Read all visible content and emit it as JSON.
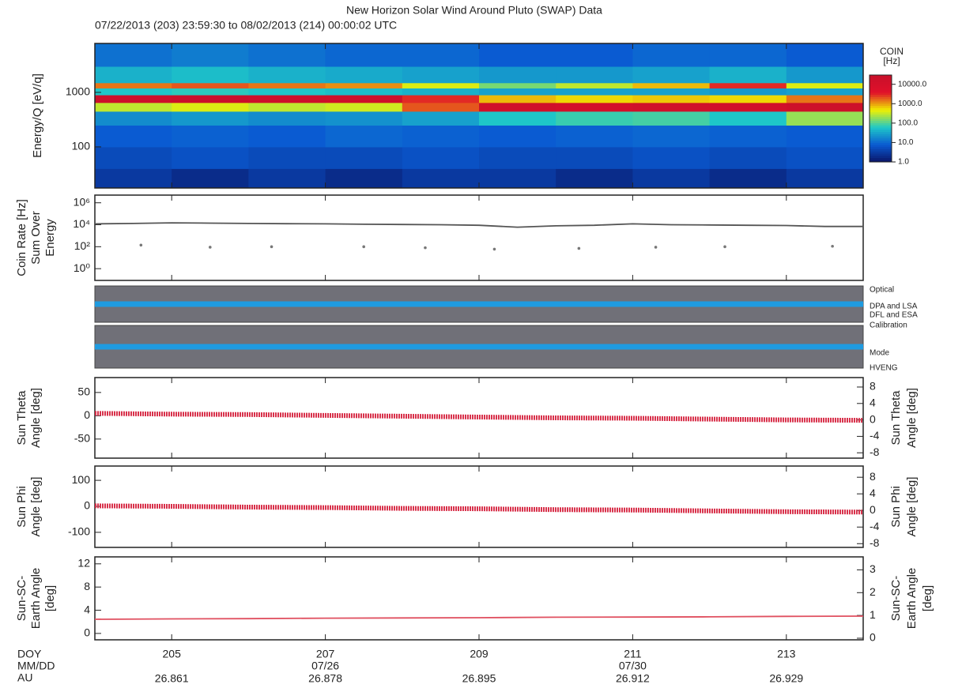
{
  "title": "New Horizon Solar Wind Around Pluto (SWAP) Data",
  "subtitle": "07/22/2013 (203) 23:59:30 to 08/02/2013 (214) 00:00:02 UTC",
  "x_axis": {
    "xlim": [
      204,
      214
    ],
    "xticks": [
      205,
      207,
      209,
      211,
      213
    ],
    "row_labels": [
      "DOY",
      "MM/DD",
      "AU"
    ],
    "mmdd": [
      null,
      "07/26",
      null,
      "07/30",
      null
    ],
    "au": [
      26.861,
      26.878,
      26.895,
      26.912,
      26.929
    ]
  },
  "chart_data": [
    {
      "type": "heatmap",
      "ylabel": [
        "Energy/Q [eV/q]"
      ],
      "log": true,
      "ylim": [
        17.6,
        7900
      ],
      "yticks": [
        100,
        1000
      ],
      "time_bins": [
        204,
        205,
        206,
        207,
        208,
        209,
        210,
        211,
        212,
        213,
        214
      ],
      "energy_bins": [
        18,
        40,
        100,
        250,
        450,
        650,
        900,
        1200,
        1500,
        3000,
        7900
      ],
      "values": [
        [
          3,
          2,
          3,
          2,
          3,
          3,
          2,
          3,
          2,
          3
        ],
        [
          5,
          6,
          5,
          5,
          6,
          5,
          5,
          6,
          5,
          6
        ],
        [
          8,
          9,
          8,
          10,
          9,
          8,
          9,
          10,
          9,
          8
        ],
        [
          20,
          25,
          20,
          22,
          30,
          60,
          80,
          90,
          60,
          200
        ],
        [
          300,
          400,
          300,
          350,
          2000,
          15000,
          12000,
          15000,
          14000,
          20000
        ],
        [
          20000,
          25000,
          20000,
          18000,
          3000,
          800,
          600,
          700,
          600,
          1500
        ],
        [
          60,
          70,
          60,
          50,
          40,
          30,
          30,
          30,
          25,
          30
        ],
        [
          1500,
          2000,
          1500,
          1200,
          400,
          150,
          300,
          800,
          3000,
          400
        ],
        [
          40,
          50,
          40,
          35,
          30,
          25,
          25,
          30,
          40,
          25
        ],
        [
          12,
          15,
          12,
          10,
          10,
          8,
          8,
          10,
          10,
          8
        ]
      ],
      "colorbar": {
        "label": [
          "COIN",
          "[Hz]"
        ],
        "lim": [
          1,
          30000
        ],
        "colorscale": [
          "#0a1466",
          "#0a5ad2",
          "#1ec8c8",
          "#f0f000",
          "#e0102a",
          "#c8102a"
        ],
        "ticks": [
          {
            "value": 10000,
            "label": "10000.0"
          },
          {
            "value": 1000,
            "label": "1000.0"
          },
          {
            "value": 100,
            "label": "100.0"
          },
          {
            "value": 10,
            "label": "10.0"
          },
          {
            "value": 1,
            "label": "1.0"
          }
        ]
      }
    },
    {
      "type": "line",
      "ylabel": [
        "Coin Rate [Hz]",
        "Sum Over",
        "Energy"
      ],
      "log": true,
      "ylim": [
        0.085,
        5000000
      ],
      "yticks": [
        {
          "value": 1000000,
          "label": "10⁶"
        },
        {
          "value": 10000,
          "label": "10⁴"
        },
        {
          "value": 100,
          "label": "10²"
        },
        {
          "value": 1,
          "label": "10⁰"
        }
      ],
      "series": [
        {
          "color": "#555555",
          "style": "line",
          "x": [
            204,
            204.5,
            205,
            205.5,
            206,
            206.5,
            207,
            207.5,
            208,
            208.5,
            209,
            209.5,
            210,
            210.5,
            211,
            211.5,
            212,
            212.5,
            213,
            213.5,
            214
          ],
          "values": [
            12000,
            13000,
            15000,
            14000,
            13000,
            12500,
            12000,
            11000,
            10500,
            10000,
            9000,
            6000,
            8000,
            9000,
            12000,
            10000,
            9500,
            9000,
            8500,
            7000,
            7000
          ]
        },
        {
          "color": "#777777",
          "style": "points",
          "x": [
            204.6,
            205.5,
            206.3,
            207.5,
            208.3,
            209.2,
            210.3,
            211.3,
            212.2,
            213.6
          ],
          "values": [
            140,
            90,
            100,
            100,
            80,
            60,
            70,
            90,
            100,
            110
          ]
        }
      ]
    },
    {
      "type": "status",
      "legend": [
        {
          "text": "Optical",
          "color": "#222222"
        },
        {
          "text": "DPA and LSA",
          "color": "#d02040"
        },
        {
          "text": "DFL and ESA",
          "color": "#2040b0"
        },
        {
          "text": "Calibration",
          "color": "#222222"
        },
        {
          "text": "Mode",
          "color": "#222222"
        },
        {
          "text": "HVENG",
          "color": "#d02040"
        }
      ],
      "bar_color": "#707078",
      "line_color": "#1f9be0"
    },
    {
      "type": "line",
      "ylabel": [
        "Sun Theta",
        "Angle [deg]"
      ],
      "y2label": [
        "Sun Theta",
        "Angle [deg]"
      ],
      "ylim": [
        -91,
        82
      ],
      "yticks": [
        50,
        0,
        -50
      ],
      "y2lim": [
        -9.3,
        10.3
      ],
      "y2ticks": [
        8,
        4,
        0,
        -4,
        -8
      ],
      "series": [
        {
          "color": "#d8304a",
          "style": "thick",
          "axis": "y2",
          "x": [
            204,
            205,
            206,
            207,
            208,
            209,
            210,
            211,
            212,
            213,
            214
          ],
          "values": [
            1.6,
            1.4,
            1.3,
            1.1,
            0.9,
            0.7,
            0.5,
            0.4,
            0.2,
            0.0,
            -0.1
          ]
        }
      ]
    },
    {
      "type": "line",
      "ylabel": [
        "Sun Phi",
        "Angle [deg]"
      ],
      "y2label": [
        "Sun Phi",
        "Angle [deg]"
      ],
      "ylim": [
        -158,
        155
      ],
      "yticks": [
        100,
        0,
        -100
      ],
      "y2lim": [
        -8.9,
        10.7
      ],
      "y2ticks": [
        8,
        4,
        0,
        -4,
        -8
      ],
      "series": [
        {
          "color": "#d8304a",
          "style": "thick",
          "axis": "y2",
          "x": [
            204,
            205,
            206,
            207,
            208,
            209,
            210,
            211,
            212,
            213,
            214
          ],
          "values": [
            1.1,
            1.0,
            0.8,
            0.7,
            0.5,
            0.4,
            0.2,
            0.1,
            -0.1,
            -0.3,
            -0.4
          ]
        }
      ]
    },
    {
      "type": "line",
      "ylabel": [
        "Sun-SC-",
        "Earth Angle",
        "[deg]"
      ],
      "y2label": [
        "Sun-SC-",
        "Earth Angle",
        "[deg]"
      ],
      "ylim": [
        -1.1,
        13.2
      ],
      "yticks": [
        0,
        4,
        8,
        12
      ],
      "y2lim": [
        -0.07,
        3.57
      ],
      "y2ticks": [
        0,
        1,
        2,
        3
      ],
      "series": [
        {
          "color": "#e05060",
          "style": "line",
          "axis": "y2",
          "x": [
            204,
            205,
            206,
            207,
            208,
            209,
            210,
            211,
            212,
            213,
            214
          ],
          "values": [
            0.83,
            0.85,
            0.86,
            0.88,
            0.89,
            0.9,
            0.92,
            0.93,
            0.94,
            0.96,
            0.97
          ]
        }
      ]
    }
  ]
}
